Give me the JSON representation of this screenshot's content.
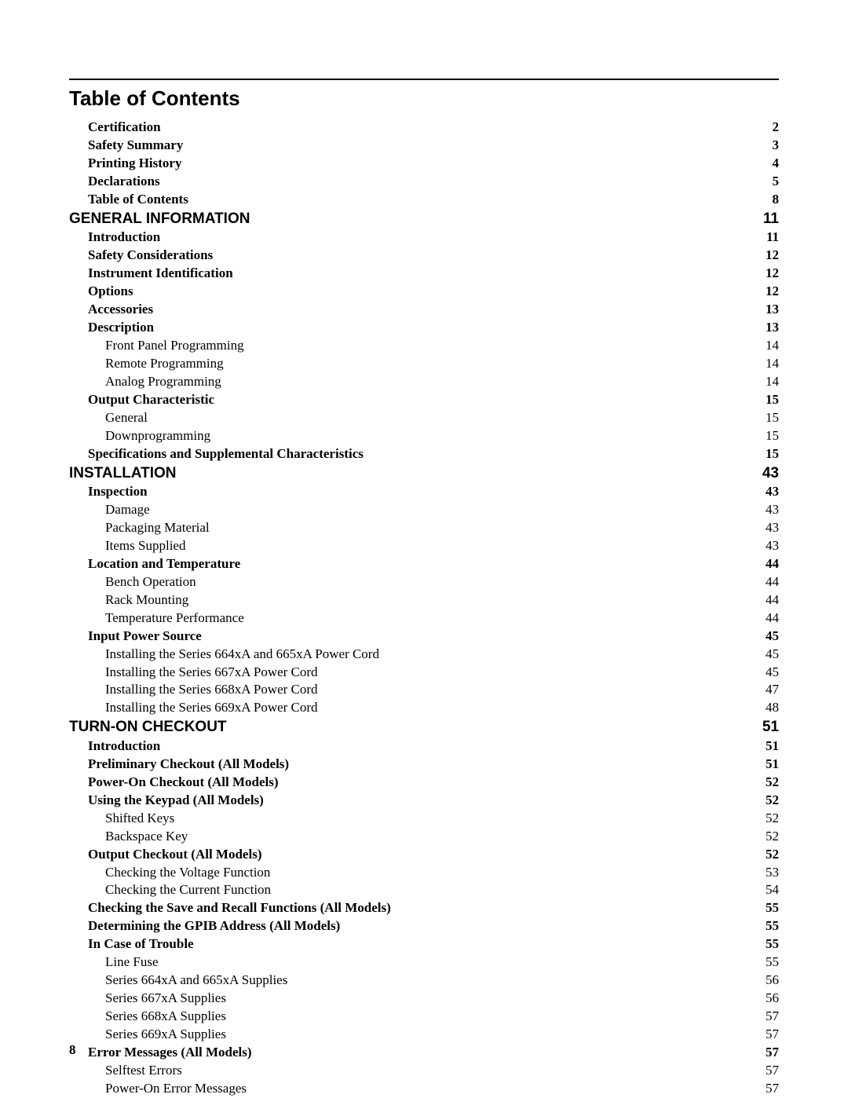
{
  "page": {
    "title": "Table of Contents",
    "page_number": "8",
    "text_color": "#000000",
    "background_color": "#ffffff",
    "divider_color": "#000000",
    "fonts": {
      "serif": "Times New Roman",
      "sans": "Arial"
    }
  },
  "toc": [
    {
      "label": "Certification",
      "page": "2",
      "level": "bold"
    },
    {
      "label": "Safety Summary",
      "page": "3",
      "level": "bold"
    },
    {
      "label": "Printing History",
      "page": "4",
      "level": "bold"
    },
    {
      "label": "Declarations",
      "page": "5",
      "level": "bold"
    },
    {
      "label": "Table of Contents",
      "page": "8",
      "level": "bold"
    },
    {
      "label": "GENERAL INFORMATION",
      "page": "11",
      "level": "section"
    },
    {
      "label": "Introduction",
      "page": "11",
      "level": "bold"
    },
    {
      "label": "Safety Considerations",
      "page": "12",
      "level": "bold"
    },
    {
      "label": "Instrument Identification",
      "page": "12",
      "level": "bold"
    },
    {
      "label": "Options",
      "page": "12",
      "level": "bold"
    },
    {
      "label": "Accessories",
      "page": "13",
      "level": "bold"
    },
    {
      "label": "Description",
      "page": "13",
      "level": "bold"
    },
    {
      "label": "Front Panel Programming",
      "page": "14",
      "level": "plain"
    },
    {
      "label": "Remote Programming",
      "page": "14",
      "level": "plain"
    },
    {
      "label": "Analog Programming",
      "page": "14",
      "level": "plain"
    },
    {
      "label": "Output Characteristic",
      "page": "15",
      "level": "bold"
    },
    {
      "label": "General",
      "page": "15",
      "level": "plain"
    },
    {
      "label": "Downprogramming",
      "page": "15",
      "level": "plain"
    },
    {
      "label": "Specifications and Supplemental Characteristics",
      "page": "15",
      "level": "bold"
    },
    {
      "label": "INSTALLATION",
      "page": "43",
      "level": "section"
    },
    {
      "label": "Inspection",
      "page": "43",
      "level": "bold"
    },
    {
      "label": "Damage",
      "page": "43",
      "level": "plain"
    },
    {
      "label": "Packaging Material",
      "page": "43",
      "level": "plain"
    },
    {
      "label": "Items Supplied",
      "page": "43",
      "level": "plain"
    },
    {
      "label": "Location and Temperature",
      "page": "44",
      "level": "bold"
    },
    {
      "label": "Bench Operation",
      "page": "44",
      "level": "plain"
    },
    {
      "label": "Rack Mounting",
      "page": "44",
      "level": "plain"
    },
    {
      "label": "Temperature Performance",
      "page": "44",
      "level": "plain"
    },
    {
      "label": "Input Power Source",
      "page": "45",
      "level": "bold"
    },
    {
      "label": "Installing the Series 664xA and 665xA Power Cord",
      "page": "45",
      "level": "plain"
    },
    {
      "label": "Installing the Series 667xA Power Cord",
      "page": "45",
      "level": "plain"
    },
    {
      "label": "Installing the Series 668xA Power Cord",
      "page": "47",
      "level": "plain"
    },
    {
      "label": "Installing the Series 669xA Power Cord",
      "page": "48",
      "level": "plain"
    },
    {
      "label": "TURN-ON CHECKOUT",
      "page": "51",
      "level": "section"
    },
    {
      "label": "Introduction",
      "page": "51",
      "level": "bold"
    },
    {
      "label": "Preliminary Checkout (All Models)",
      "page": "51",
      "level": "bold"
    },
    {
      "label": "Power-On Checkout (All Models)",
      "page": "52",
      "level": "bold"
    },
    {
      "label": "Using the Keypad (All Models)",
      "page": "52",
      "level": "bold"
    },
    {
      "label": "Shifted Keys",
      "page": "52",
      "level": "plain"
    },
    {
      "label": "Backspace Key",
      "page": "52",
      "level": "plain"
    },
    {
      "label": "Output Checkout (All Models)",
      "page": "52",
      "level": "bold"
    },
    {
      "label": "Checking the Voltage Function",
      "page": "53",
      "level": "plain"
    },
    {
      "label": "Checking the Current Function",
      "page": "54",
      "level": "plain"
    },
    {
      "label": "Checking the Save and Recall Functions (All Models)",
      "page": "55",
      "level": "bold"
    },
    {
      "label": "Determining the GPIB Address (All Models)",
      "page": "55",
      "level": "bold"
    },
    {
      "label": "In Case of Trouble",
      "page": "55",
      "level": "bold"
    },
    {
      "label": "Line Fuse",
      "page": "55",
      "level": "plain"
    },
    {
      "label": "Series 664xA and 665xA Supplies",
      "page": "56",
      "level": "plain"
    },
    {
      "label": "Series 667xA Supplies",
      "page": "56",
      "level": "plain"
    },
    {
      "label": "Series 668xA Supplies",
      "page": "57",
      "level": "plain"
    },
    {
      "label": "Series 669xA Supplies",
      "page": "57",
      "level": "plain"
    },
    {
      "label": "Error Messages (All Models)",
      "page": "57",
      "level": "bold"
    },
    {
      "label": "Selftest Errors",
      "page": "57",
      "level": "plain"
    },
    {
      "label": "Power-On Error Messages",
      "page": "57",
      "level": "plain"
    }
  ]
}
